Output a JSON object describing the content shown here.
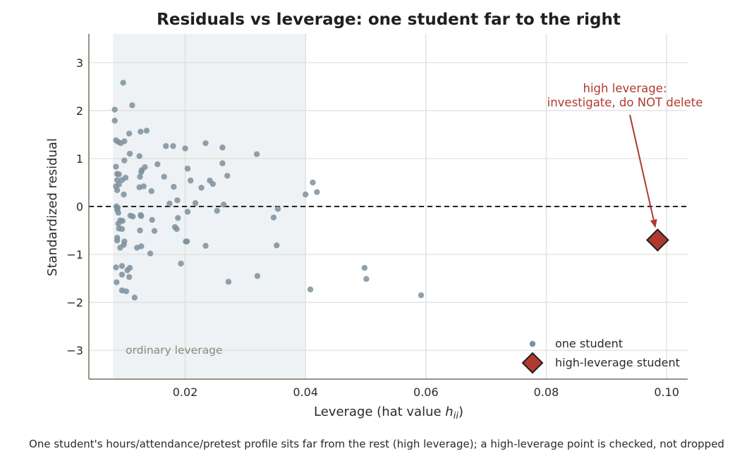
{
  "chart_data": {
    "type": "scatter",
    "title": "Residuals vs leverage: one student far to the right",
    "xlabel": "Leverage  (hat value ",
    "xlabel_symbol": "h",
    "xlabel_subscript": "ii",
    "xlabel_close": ")",
    "ylabel": "Standardized residual",
    "xlim": [
      0.004,
      0.1035
    ],
    "ylim": [
      -3.6,
      3.6
    ],
    "xticks": [
      0.02,
      0.04,
      0.06,
      0.08,
      0.1
    ],
    "xtick_labels": [
      "0.02",
      "0.04",
      "0.06",
      "0.08",
      "0.10"
    ],
    "yticks": [
      3,
      2,
      1,
      0,
      -1,
      -2,
      -3
    ],
    "ytick_labels": [
      "3",
      "2",
      "1",
      "0",
      "−1",
      "−2",
      "−3"
    ],
    "grid": true,
    "reference_line_y": 0,
    "shaded_band": {
      "x_range": [
        0.008,
        0.04
      ],
      "label": "ordinary leverage"
    },
    "legend_position": "bottom-right",
    "series": [
      {
        "name": "one student",
        "color": "#7d909e",
        "points": [
          [
            0.0097,
            2.58
          ],
          [
            0.0112,
            2.11
          ],
          [
            0.0083,
            2.02
          ],
          [
            0.0083,
            1.79
          ],
          [
            0.0107,
            1.52
          ],
          [
            0.0126,
            1.56
          ],
          [
            0.0136,
            1.58
          ],
          [
            0.0085,
            1.38
          ],
          [
            0.0088,
            1.35
          ],
          [
            0.0093,
            1.32
          ],
          [
            0.0099,
            1.36
          ],
          [
            0.0108,
            1.1
          ],
          [
            0.0124,
            1.05
          ],
          [
            0.0099,
            0.96
          ],
          [
            0.0085,
            0.83
          ],
          [
            0.0087,
            0.68
          ],
          [
            0.009,
            0.67
          ],
          [
            0.0087,
            0.55
          ],
          [
            0.0095,
            0.55
          ],
          [
            0.009,
            0.46
          ],
          [
            0.0085,
            0.42
          ],
          [
            0.0087,
            0.34
          ],
          [
            0.0101,
            0.6
          ],
          [
            0.0125,
            0.62
          ],
          [
            0.0127,
            0.72
          ],
          [
            0.0128,
            0.76
          ],
          [
            0.0133,
            0.82
          ],
          [
            0.0124,
            0.4
          ],
          [
            0.0131,
            0.42
          ],
          [
            0.0144,
            0.32
          ],
          [
            0.0098,
            0.25
          ],
          [
            0.0086,
            0.0
          ],
          [
            0.0088,
            -0.03
          ],
          [
            0.0089,
            -0.13
          ],
          [
            0.0087,
            -0.07
          ],
          [
            0.0092,
            -0.29
          ],
          [
            0.0089,
            -0.36
          ],
          [
            0.009,
            -0.46
          ],
          [
            0.0096,
            -0.3
          ],
          [
            0.0095,
            -0.47
          ],
          [
            0.0087,
            -0.65
          ],
          [
            0.0087,
            -0.71
          ],
          [
            0.0099,
            -0.73
          ],
          [
            0.0098,
            -0.8
          ],
          [
            0.0092,
            -0.86
          ],
          [
            0.0109,
            -0.19
          ],
          [
            0.0113,
            -0.21
          ],
          [
            0.0126,
            -0.18
          ],
          [
            0.0127,
            -0.2
          ],
          [
            0.0145,
            -0.28
          ],
          [
            0.0149,
            -0.51
          ],
          [
            0.0125,
            -0.5
          ],
          [
            0.0127,
            -0.83
          ],
          [
            0.012,
            -0.86
          ],
          [
            0.0142,
            -0.98
          ],
          [
            0.0085,
            -1.27
          ],
          [
            0.0095,
            -1.24
          ],
          [
            0.0104,
            -1.33
          ],
          [
            0.0108,
            -1.28
          ],
          [
            0.0095,
            -1.42
          ],
          [
            0.0107,
            -1.47
          ],
          [
            0.0086,
            -1.58
          ],
          [
            0.0095,
            -1.75
          ],
          [
            0.0102,
            -1.77
          ],
          [
            0.0116,
            -1.9
          ],
          [
            0.0154,
            0.88
          ],
          [
            0.0165,
            0.62
          ],
          [
            0.0168,
            1.26
          ],
          [
            0.018,
            1.26
          ],
          [
            0.0181,
            0.41
          ],
          [
            0.0174,
            0.06
          ],
          [
            0.0187,
            0.13
          ],
          [
            0.02,
            1.21
          ],
          [
            0.0204,
            0.79
          ],
          [
            0.0209,
            0.54
          ],
          [
            0.0183,
            -0.43
          ],
          [
            0.0186,
            -0.47
          ],
          [
            0.0188,
            -0.24
          ],
          [
            0.0204,
            -0.11
          ],
          [
            0.0201,
            -0.73
          ],
          [
            0.0203,
            -0.73
          ],
          [
            0.0193,
            -1.19
          ],
          [
            0.0217,
            0.07
          ],
          [
            0.0227,
            0.39
          ],
          [
            0.0234,
            1.32
          ],
          [
            0.0241,
            0.54
          ],
          [
            0.0246,
            0.47
          ],
          [
            0.0262,
            1.23
          ],
          [
            0.0262,
            0.9
          ],
          [
            0.0264,
            0.04
          ],
          [
            0.0253,
            -0.09
          ],
          [
            0.027,
            0.64
          ],
          [
            0.0234,
            -0.82
          ],
          [
            0.0272,
            -1.57
          ],
          [
            0.0319,
            1.09
          ],
          [
            0.032,
            -1.45
          ],
          [
            0.0347,
            -0.23
          ],
          [
            0.0354,
            -0.05
          ],
          [
            0.0352,
            -0.81
          ],
          [
            0.04,
            0.25
          ],
          [
            0.0412,
            0.5
          ],
          [
            0.0419,
            0.3
          ],
          [
            0.0408,
            -1.73
          ],
          [
            0.0498,
            -1.28
          ],
          [
            0.0501,
            -1.51
          ],
          [
            0.0592,
            -1.85
          ]
        ]
      },
      {
        "name": "high-leverage student",
        "color": "#b03a2e",
        "points": [
          [
            0.0985,
            -0.7
          ]
        ]
      }
    ],
    "annotations": [
      {
        "text_lines": [
          "high leverage:",
          "investigate, do NOT delete"
        ],
        "color": "#b03a2e",
        "arrow_to": [
          0.0985,
          -0.7
        ]
      }
    ]
  },
  "caption": "One student's hours/attendance/pretest profile sits far from the rest (high leverage); a high-leverage point is checked, not dropped",
  "colors": {
    "band": "#eef2f4",
    "band_label": "#8a8a7a",
    "grid": "#dddddd",
    "axis": "#7a725f",
    "zero_line": "#222222",
    "highlight_marker": "#b03a2e",
    "highlight_edge": "#1f1f1f",
    "annotation": "#b03a2e"
  },
  "icons": {
    "legend_student": "circle-marker-icon",
    "legend_highlight": "diamond-marker-icon"
  }
}
